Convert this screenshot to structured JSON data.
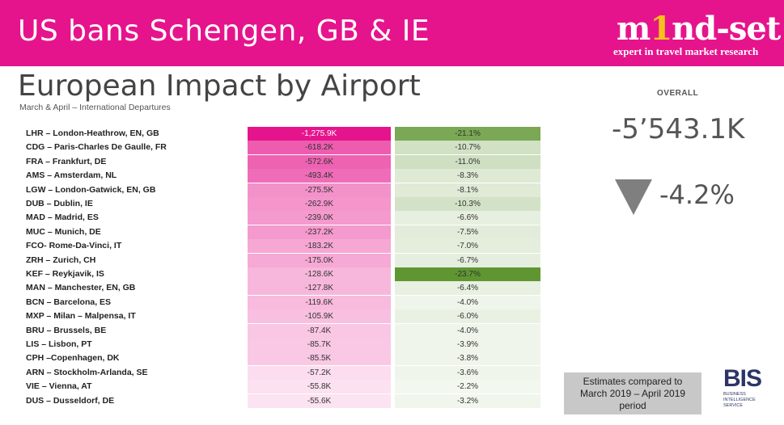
{
  "banner": {
    "title": "US bans Schengen, GB & IE",
    "logo": {
      "word_a": "m",
      "word_hi": "1",
      "word_b": "nd-set",
      "tagline": "expert in travel market research"
    }
  },
  "header": {
    "title": "European Impact by Airport",
    "subtitle": "March & April – International Departures"
  },
  "rows": [
    {
      "label": "LHR – London-Heathrow, EN, GB",
      "abs": "-1,275.9K",
      "pct": "-21.1%"
    },
    {
      "label": "CDG – Paris-Charles De Gaulle, FR",
      "abs": "-618.2K",
      "pct": "-10.7%"
    },
    {
      "label": "FRA – Frankfurt, DE",
      "abs": "-572.6K",
      "pct": "-11.0%"
    },
    {
      "label": "AMS – Amsterdam,  NL",
      "abs": "-493.4K",
      "pct": "-8.3%"
    },
    {
      "label": "LGW – London-Gatwick, EN, GB",
      "abs": "-275.5K",
      "pct": "-8.1%"
    },
    {
      "label": "DUB – Dublin, IE",
      "abs": "-262.9K",
      "pct": "-10.3%"
    },
    {
      "label": "MAD – Madrid, ES",
      "abs": "-239.0K",
      "pct": "-6.6%"
    },
    {
      "label": "MUC – Munich, DE",
      "abs": "-237.2K",
      "pct": "-7.5%"
    },
    {
      "label": "FCO- Rome-Da-Vinci, IT",
      "abs": "-183.2K",
      "pct": "-7.0%"
    },
    {
      "label": "ZRH – Zurich, CH",
      "abs": "-175.0K",
      "pct": "-6.7%"
    },
    {
      "label": "KEF – Reykjavik, IS",
      "abs": "-128.6K",
      "pct": "-23.7%"
    },
    {
      "label": "MAN – Manchester, EN, GB",
      "abs": "-127.8K",
      "pct": "-6.4%"
    },
    {
      "label": "BCN – Barcelona, ES",
      "abs": "-119.6K",
      "pct": "-4.0%"
    },
    {
      "label": "MXP – Milan – Malpensa, IT",
      "abs": "-105.9K",
      "pct": "-6.0%"
    },
    {
      "label": "BRU – Brussels, BE",
      "abs": "-87.4K",
      "pct": "-4.0%"
    },
    {
      "label": "LIS – Lisbon, PT",
      "abs": "-85.7K",
      "pct": "-3.9%"
    },
    {
      "label": "CPH –Copenhagen,  DK",
      "abs": "-85.5K",
      "pct": "-3.8%"
    },
    {
      "label": "ARN – Stockholm-Arlanda,  SE",
      "abs": "-57.2K",
      "pct": "-3.6%"
    },
    {
      "label": "VIE – Vienna, AT",
      "abs": "-55.8K",
      "pct": "-2.2%"
    },
    {
      "label": "DUS – Dusseldorf, DE",
      "abs": "-55.6K",
      "pct": "-3.2%"
    }
  ],
  "overall": {
    "label": "OVERALL",
    "value": "-5’543.1K",
    "pct": "-4.2%",
    "trend_icon": "down-triangle-icon"
  },
  "note": {
    "line1": "Estimates compared to",
    "line2": "March 2019 – April 2019",
    "line3": "period"
  },
  "bis_logo": {
    "mark": "BIS",
    "line1": "BUSINESS",
    "line2": "INTELLIGENCE",
    "line3": "SERVICE"
  },
  "colors": {
    "banner": "#e6148c",
    "abs_scale_high": "#e6148c",
    "abs_scale_low": "#ffffff",
    "pct_scale_high": "#5f9632",
    "pct_scale_low": "#ffffff"
  }
}
